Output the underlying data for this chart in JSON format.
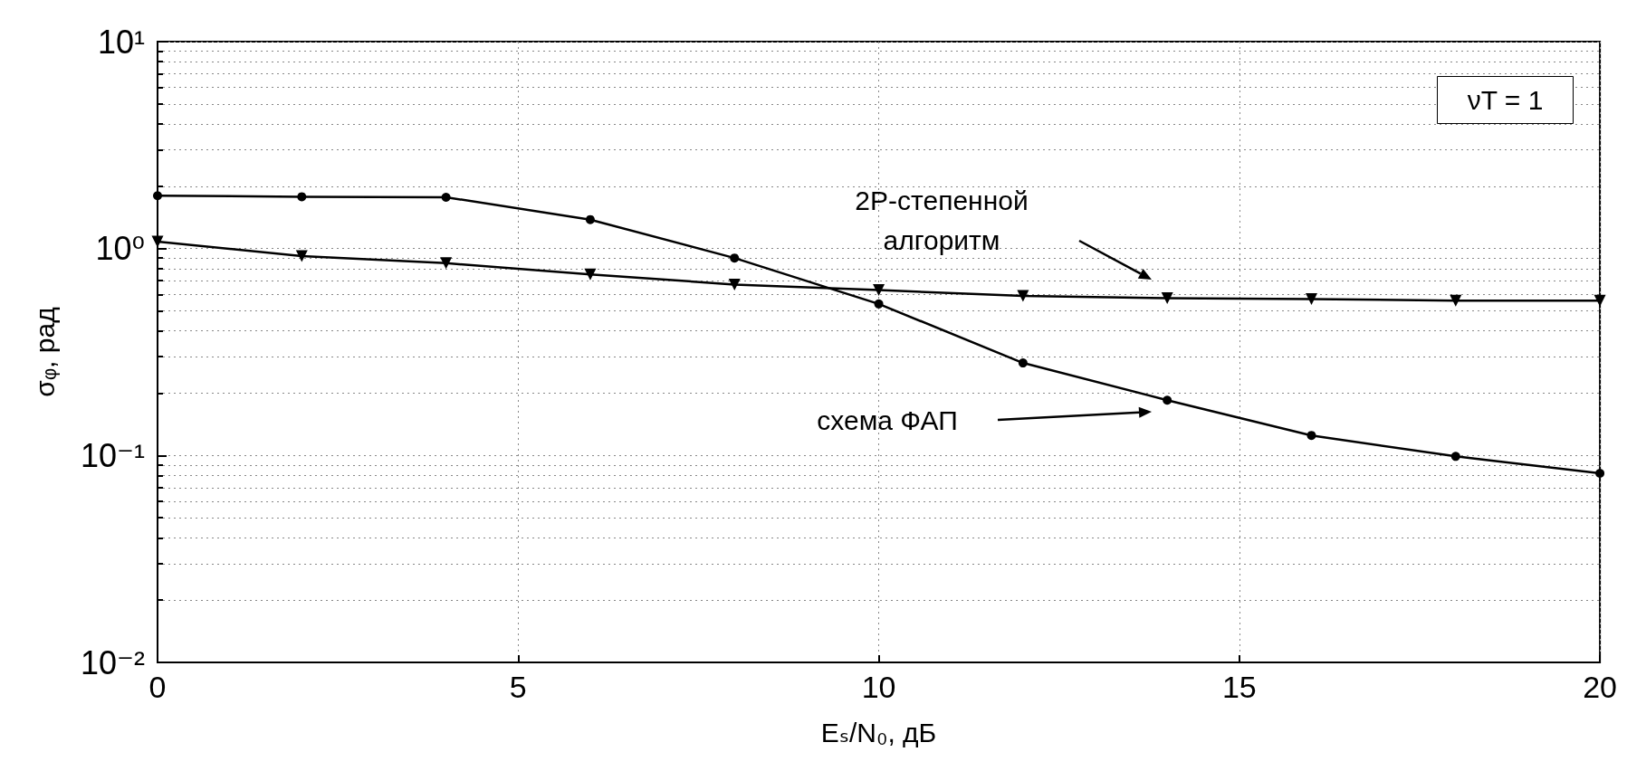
{
  "chart_data": {
    "type": "line",
    "xlabel": "Eₛ/N₀, дБ",
    "ylabel": "σᵩ, рад",
    "x": [
      0,
      2,
      4,
      6,
      8,
      10,
      12,
      14,
      16,
      18,
      20
    ],
    "series": [
      {
        "color": "#000000",
        "marker": "circle",
        "values": [
          1.8,
          1.78,
          1.77,
          1.38,
          0.9,
          0.54,
          0.28,
          0.185,
          0.125,
          0.099,
          0.082
        ]
      },
      {
        "color": "#000000",
        "marker": "triangle",
        "values": [
          1.08,
          0.92,
          0.85,
          0.75,
          0.67,
          0.63,
          0.59,
          0.575,
          0.57,
          0.56,
          0.56
        ]
      }
    ],
    "xlim": [
      0,
      20
    ],
    "xticks": [
      0,
      5,
      10,
      15,
      20
    ],
    "ylim": [
      0.01,
      10
    ],
    "yticks": [
      {
        "value": 0.01,
        "label": "10⁻²"
      },
      {
        "value": 0.1,
        "label": "10⁻¹"
      },
      {
        "value": 1,
        "label": "10⁰"
      },
      {
        "value": 10,
        "label": "10¹"
      }
    ],
    "log": "y",
    "grid": true,
    "line_style": "solid",
    "annotations": [
      "2P-степенной\nалгоритм",
      "схема ФАП",
      "νT = 1"
    ]
  }
}
